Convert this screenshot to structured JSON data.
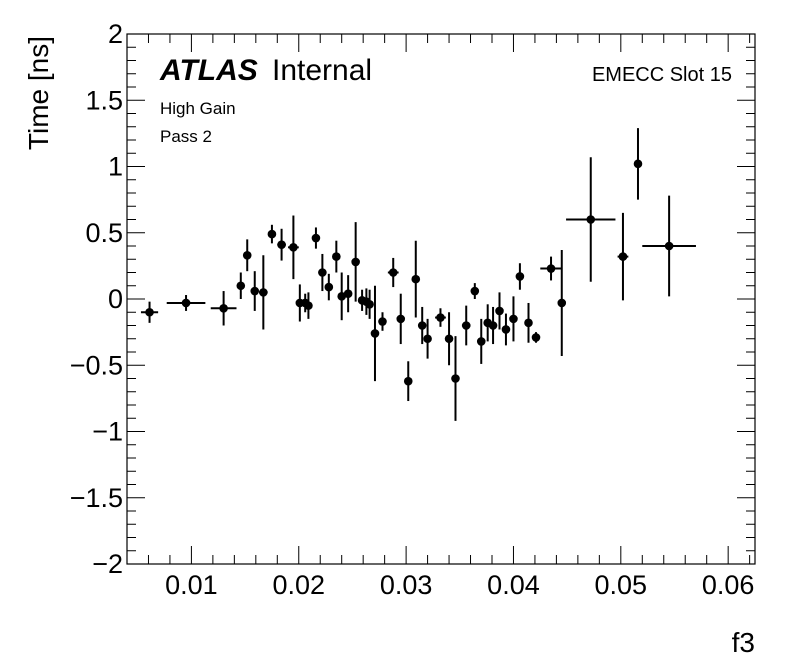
{
  "labels": {
    "atlas": "ATLAS",
    "internal": "Internal",
    "gain": "High Gain",
    "pass": "Pass 2",
    "slot": "EMECC Slot 15"
  },
  "chart_data": {
    "type": "scatter",
    "xlabel": "f3",
    "ylabel": "Time [ns]",
    "xlim": [
      0.004,
      0.0625
    ],
    "ylim": [
      -2,
      2
    ],
    "x_ticks": [
      {
        "value": 0.01,
        "label": "0.01"
      },
      {
        "value": 0.02,
        "label": "0.02"
      },
      {
        "value": 0.03,
        "label": "0.03"
      },
      {
        "value": 0.04,
        "label": "0.04"
      },
      {
        "value": 0.05,
        "label": "0.05"
      },
      {
        "value": 0.06,
        "label": "0.06"
      }
    ],
    "y_ticks": [
      {
        "value": 2,
        "label": "2"
      },
      {
        "value": 1.5,
        "label": "1.5"
      },
      {
        "value": 1,
        "label": "1"
      },
      {
        "value": 0.5,
        "label": "0.5"
      },
      {
        "value": 0,
        "label": "0"
      },
      {
        "value": -0.5,
        "label": "−0.5"
      },
      {
        "value": -1,
        "label": "−1"
      },
      {
        "value": -1.5,
        "label": "−1.5"
      },
      {
        "value": -2,
        "label": "−2"
      }
    ],
    "grid": false,
    "marker_color": "#000000",
    "points": [
      {
        "x": 0.0061,
        "y": -0.1,
        "xerr": 0.0008,
        "yerr": 0.08
      },
      {
        "x": 0.0095,
        "y": -0.03,
        "xerr": 0.0018,
        "yerr": 0.06
      },
      {
        "x": 0.013,
        "y": -0.07,
        "xerr": 0.0012,
        "yerr": 0.13
      },
      {
        "x": 0.0146,
        "y": 0.1,
        "xerr": 0.0003,
        "yerr": 0.1
      },
      {
        "x": 0.0152,
        "y": 0.33,
        "xerr": 0.0003,
        "yerr": 0.12
      },
      {
        "x": 0.0159,
        "y": 0.06,
        "xerr": 0.0003,
        "yerr": 0.15
      },
      {
        "x": 0.0167,
        "y": 0.05,
        "xerr": 0.0004,
        "yerr": 0.28
      },
      {
        "x": 0.0175,
        "y": 0.49,
        "xerr": 0.0003,
        "yerr": 0.07
      },
      {
        "x": 0.0184,
        "y": 0.41,
        "xerr": 0.0004,
        "yerr": 0.12
      },
      {
        "x": 0.0195,
        "y": 0.39,
        "xerr": 0.0005,
        "yerr": 0.24
      },
      {
        "x": 0.0201,
        "y": -0.03,
        "xerr": 0.0003,
        "yerr": 0.14
      },
      {
        "x": 0.0206,
        "y": -0.03,
        "xerr": 0.0002,
        "yerr": 0.07
      },
      {
        "x": 0.0209,
        "y": -0.05,
        "xerr": 0.0002,
        "yerr": 0.1
      },
      {
        "x": 0.0216,
        "y": 0.46,
        "xerr": 0.0003,
        "yerr": 0.08
      },
      {
        "x": 0.0222,
        "y": 0.2,
        "xerr": 0.0003,
        "yerr": 0.14
      },
      {
        "x": 0.0228,
        "y": 0.09,
        "xerr": 0.0002,
        "yerr": 0.1
      },
      {
        "x": 0.0235,
        "y": 0.32,
        "xerr": 0.0003,
        "yerr": 0.12
      },
      {
        "x": 0.024,
        "y": 0.02,
        "xerr": 0.0002,
        "yerr": 0.18
      },
      {
        "x": 0.0246,
        "y": 0.04,
        "xerr": 0.0003,
        "yerr": 0.14
      },
      {
        "x": 0.0253,
        "y": 0.28,
        "xerr": 0.0003,
        "yerr": 0.3
      },
      {
        "x": 0.0259,
        "y": -0.01,
        "xerr": 0.0002,
        "yerr": 0.08
      },
      {
        "x": 0.0263,
        "y": -0.02,
        "xerr": 0.0002,
        "yerr": 0.1
      },
      {
        "x": 0.0266,
        "y": -0.04,
        "xerr": 0.0002,
        "yerr": 0.11
      },
      {
        "x": 0.0271,
        "y": -0.26,
        "xerr": 0.0002,
        "yerr": 0.36
      },
      {
        "x": 0.0278,
        "y": -0.17,
        "xerr": 0.0002,
        "yerr": 0.07
      },
      {
        "x": 0.0288,
        "y": 0.2,
        "xerr": 0.0005,
        "yerr": 0.11
      },
      {
        "x": 0.0295,
        "y": -0.15,
        "xerr": 0.0002,
        "yerr": 0.19
      },
      {
        "x": 0.0302,
        "y": -0.62,
        "xerr": 0.0002,
        "yerr": 0.15
      },
      {
        "x": 0.0309,
        "y": 0.15,
        "xerr": 0.0002,
        "yerr": 0.29
      },
      {
        "x": 0.0315,
        "y": -0.2,
        "xerr": 0.0002,
        "yerr": 0.14
      },
      {
        "x": 0.032,
        "y": -0.3,
        "xerr": 0.0002,
        "yerr": 0.15
      },
      {
        "x": 0.0332,
        "y": -0.14,
        "xerr": 0.0005,
        "yerr": 0.07
      },
      {
        "x": 0.034,
        "y": -0.3,
        "xerr": 0.0002,
        "yerr": 0.2
      },
      {
        "x": 0.0346,
        "y": -0.6,
        "xerr": 0.0002,
        "yerr": 0.32
      },
      {
        "x": 0.0356,
        "y": -0.2,
        "xerr": 0.0004,
        "yerr": 0.15
      },
      {
        "x": 0.0364,
        "y": 0.06,
        "xerr": 0.0002,
        "yerr": 0.06
      },
      {
        "x": 0.037,
        "y": -0.32,
        "xerr": 0.0002,
        "yerr": 0.17
      },
      {
        "x": 0.0376,
        "y": -0.18,
        "xerr": 0.0002,
        "yerr": 0.14
      },
      {
        "x": 0.0381,
        "y": -0.2,
        "xerr": 0.0002,
        "yerr": 0.14
      },
      {
        "x": 0.0387,
        "y": -0.09,
        "xerr": 0.0002,
        "yerr": 0.14
      },
      {
        "x": 0.0393,
        "y": -0.23,
        "xerr": 0.0002,
        "yerr": 0.12
      },
      {
        "x": 0.04,
        "y": -0.15,
        "xerr": 0.0003,
        "yerr": 0.17
      },
      {
        "x": 0.0406,
        "y": 0.17,
        "xerr": 0.0003,
        "yerr": 0.1
      },
      {
        "x": 0.0414,
        "y": -0.18,
        "xerr": 0.0002,
        "yerr": 0.15
      },
      {
        "x": 0.0421,
        "y": -0.29,
        "xerr": 0.0002,
        "yerr": 0.04
      },
      {
        "x": 0.0435,
        "y": 0.23,
        "xerr": 0.001,
        "yerr": 0.09
      },
      {
        "x": 0.0445,
        "y": -0.03,
        "xerr": 0.0002,
        "yerr": 0.4
      },
      {
        "x": 0.0472,
        "y": 0.6,
        "xerr": 0.0023,
        "yerr": 0.47
      },
      {
        "x": 0.0502,
        "y": 0.32,
        "xerr": 0.0005,
        "yerr": 0.33
      },
      {
        "x": 0.0516,
        "y": 1.02,
        "xerr": 0.0003,
        "yerr": 0.27
      },
      {
        "x": 0.0545,
        "y": 0.4,
        "xerr": 0.0025,
        "yerr": 0.38
      }
    ]
  }
}
